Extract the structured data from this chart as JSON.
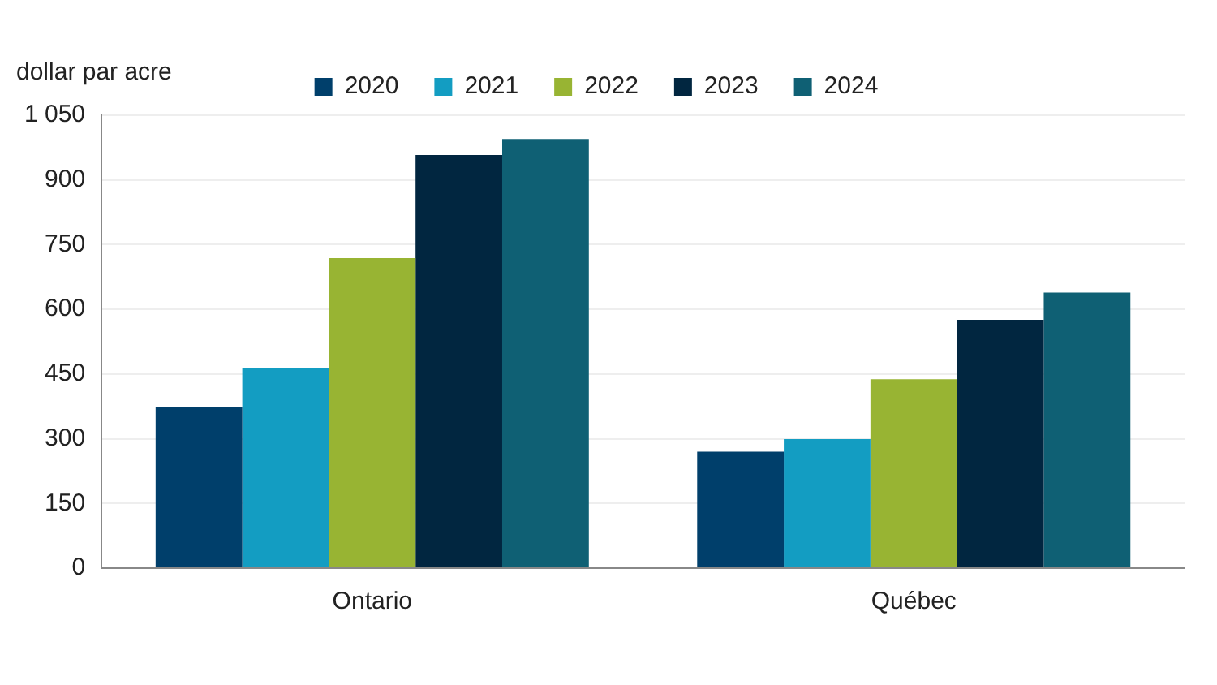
{
  "chart_data": {
    "type": "bar",
    "ylabel": "dollar par acre",
    "categories": [
      "Ontario",
      "Québec"
    ],
    "series": [
      {
        "name": "2020",
        "color": "#003f6b",
        "values": [
          374,
          270
        ]
      },
      {
        "name": "2021",
        "color": "#139dc2",
        "values": [
          464,
          299
        ]
      },
      {
        "name": "2022",
        "color": "#98b433",
        "values": [
          719,
          438
        ]
      },
      {
        "name": "2023",
        "color": "#012640",
        "values": [
          958,
          576
        ]
      },
      {
        "name": "2024",
        "color": "#0f6074",
        "values": [
          995,
          639
        ]
      }
    ],
    "ylim": [
      0,
      1050
    ],
    "yticks": [
      0,
      150,
      300,
      450,
      600,
      750,
      900,
      {
        "value": 1050,
        "label": "1 050"
      }
    ],
    "grid": "y",
    "legend": "top"
  }
}
